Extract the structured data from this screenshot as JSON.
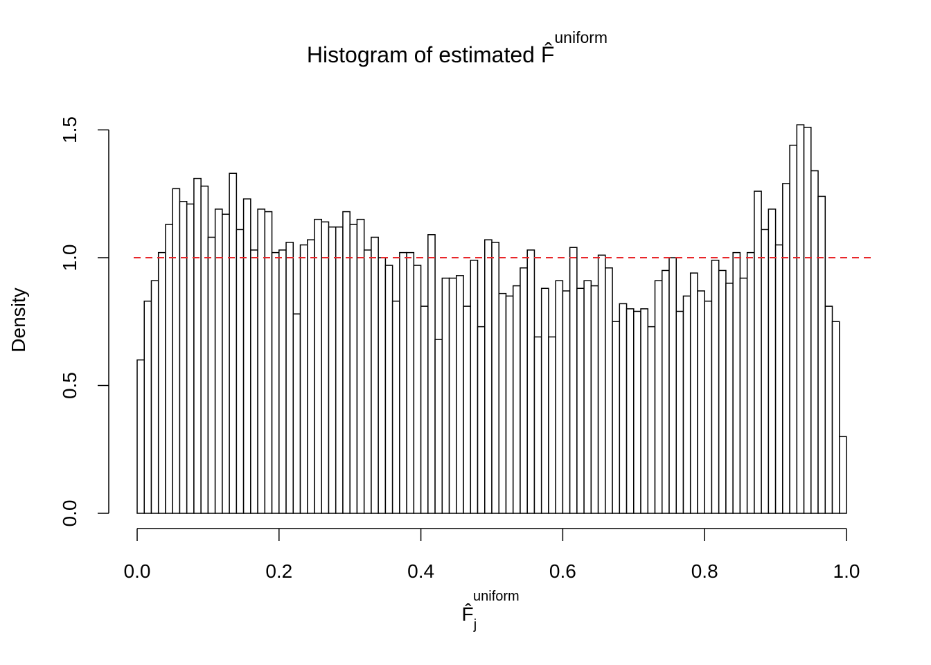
{
  "chart_data": {
    "type": "histogram",
    "title": {
      "text": "Histogram of estimated",
      "symbol": "F̂",
      "superscript": "uniform"
    },
    "x_label": {
      "symbol": "F̂",
      "subscript": "j",
      "superscript": "uniform"
    },
    "y_label": "Density",
    "bins": [
      0,
      0.01,
      0.02,
      0.03,
      0.04,
      0.05,
      0.06,
      0.07,
      0.08,
      0.09,
      0.1,
      0.11,
      0.12,
      0.13,
      0.14,
      0.15,
      0.16,
      0.17,
      0.18,
      0.19,
      0.2,
      0.21,
      0.22,
      0.23,
      0.24,
      0.25,
      0.26,
      0.27,
      0.28,
      0.29,
      0.3,
      0.31,
      0.32,
      0.33,
      0.34,
      0.35,
      0.36,
      0.37,
      0.38,
      0.39,
      0.4,
      0.41,
      0.42,
      0.43,
      0.44,
      0.45,
      0.46,
      0.47,
      0.48,
      0.49,
      0.5,
      0.51,
      0.52,
      0.53,
      0.54,
      0.55,
      0.56,
      0.57,
      0.58,
      0.59,
      0.6,
      0.61,
      0.62,
      0.63,
      0.64,
      0.65,
      0.66,
      0.67,
      0.68,
      0.69,
      0.7,
      0.71,
      0.72,
      0.73,
      0.74,
      0.75,
      0.76,
      0.77,
      0.78,
      0.79,
      0.8,
      0.81,
      0.82,
      0.83,
      0.84,
      0.85,
      0.86,
      0.87,
      0.88,
      0.89,
      0.9,
      0.91,
      0.92,
      0.93,
      0.94,
      0.95,
      0.96,
      0.97,
      0.98,
      0.99,
      1
    ],
    "values": [
      0.6,
      0.83,
      0.91,
      1.02,
      1.13,
      1.27,
      1.22,
      1.21,
      1.31,
      1.28,
      1.08,
      1.19,
      1.17,
      1.33,
      1.11,
      1.23,
      1.03,
      1.19,
      1.18,
      1.02,
      1.03,
      1.06,
      0.78,
      1.05,
      1.07,
      1.15,
      1.14,
      1.12,
      1.12,
      1.18,
      1.13,
      1.15,
      1.03,
      1.08,
      1.0,
      0.97,
      0.83,
      1.02,
      1.02,
      0.97,
      0.81,
      1.09,
      0.68,
      0.92,
      0.92,
      0.93,
      0.81,
      0.99,
      0.73,
      1.07,
      1.06,
      0.86,
      0.85,
      0.89,
      0.96,
      1.03,
      0.69,
      0.88,
      0.69,
      0.91,
      0.87,
      1.04,
      0.88,
      0.91,
      0.89,
      1.01,
      0.96,
      0.75,
      0.82,
      0.8,
      0.79,
      0.8,
      0.73,
      0.91,
      0.95,
      1.0,
      0.79,
      0.85,
      0.94,
      0.87,
      0.83,
      0.99,
      0.95,
      0.9,
      1.02,
      0.92,
      1.02,
      1.26,
      1.11,
      1.19,
      1.05,
      1.29,
      1.44,
      1.52,
      1.51,
      1.34,
      1.24,
      0.81,
      0.75,
      0.3
    ],
    "color": "#ffffff",
    "reference_line": {
      "value": 1,
      "color": "#e8262a"
    },
    "xlim": [
      0,
      1
    ],
    "xticks": [
      {
        "value": 0,
        "label": "0.0"
      },
      0.2,
      0.4,
      0.6,
      0.8,
      {
        "value": 1,
        "label": "1.0"
      }
    ],
    "ylim": [
      0,
      1.5
    ],
    "yticks": [
      {
        "value": 0,
        "label": "0.0"
      },
      0.5,
      {
        "value": 1,
        "label": "1.0"
      },
      1.5
    ]
  }
}
